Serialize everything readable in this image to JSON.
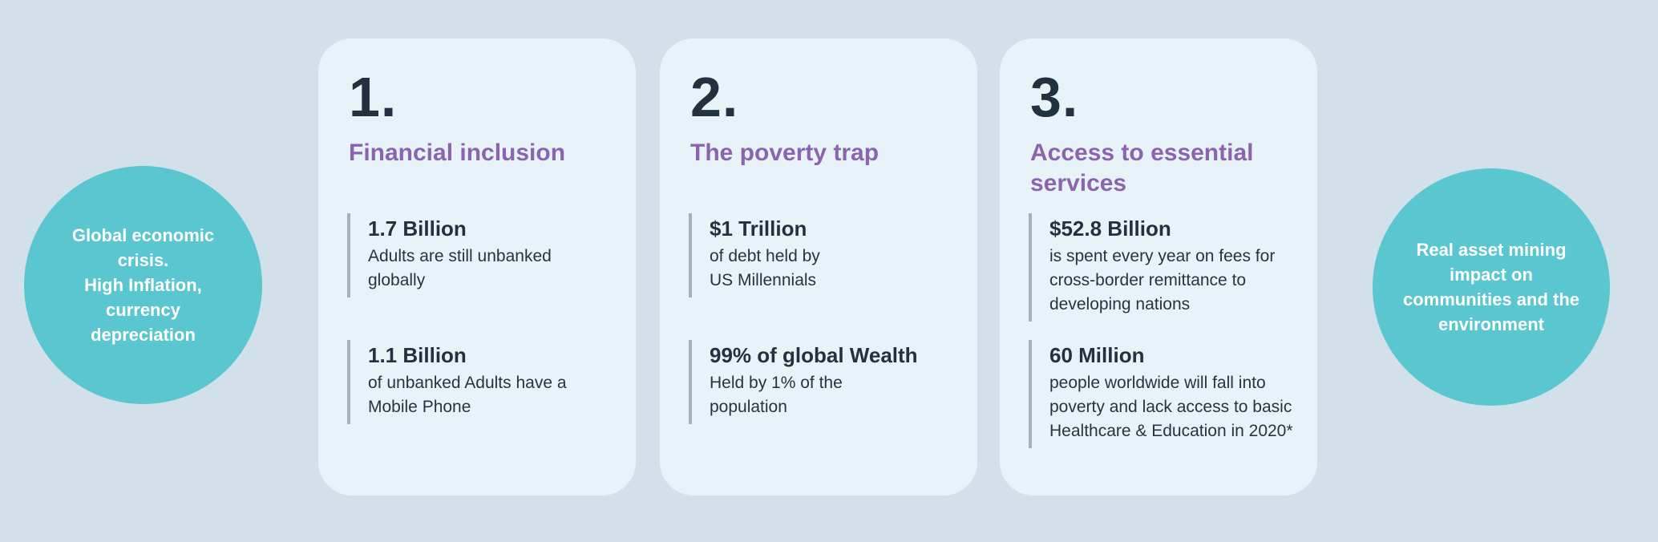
{
  "scene": {
    "colors": {
      "background": "#d2e0ea",
      "card_background": "#e8f3f9",
      "bubble_teal": "#5ac6d0",
      "heading_purple": "#8b63ae",
      "text_navy": "#22313f",
      "stat_bar_gray": "#a8b1b8"
    },
    "left_bubble": {
      "text": "Global economic\ncrisis.\nHigh Inflation,\ncurrency\ndepreciation"
    },
    "right_bubble": {
      "text": "Real asset  mining\nimpact on\ncommunities and the\nenvironment"
    },
    "cards": [
      {
        "number": "1.",
        "title": "Financial inclusion",
        "stats": [
          {
            "value": "1.7 Billion",
            "description": "Adults are still unbanked\nglobally"
          },
          {
            "value": "1.1 Billion",
            "description": "of unbanked Adults have a\nMobile Phone"
          }
        ]
      },
      {
        "number": "2.",
        "title": "The poverty trap",
        "stats": [
          {
            "value": "$1 Trillion",
            "description": "of debt held by\nUS Millennials"
          },
          {
            "value": "99% of global Wealth",
            "description": "Held by 1% of the\npopulation"
          }
        ]
      },
      {
        "number": "3.",
        "title": "Access to essential\nservices",
        "stats": [
          {
            "value": "$52.8 Billion",
            "description": "is spent every year on fees for\ncross-border remittance to\ndeveloping nations"
          },
          {
            "value": "60 Million",
            "description": "people worldwide will fall into\npoverty and lack access to basic\nHealthcare & Education in 2020*"
          }
        ]
      }
    ]
  }
}
